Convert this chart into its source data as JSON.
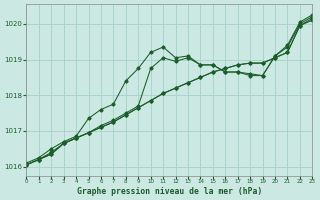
{
  "title": "Graphe pression niveau de la mer (hPa)",
  "background_color": "#cce8e2",
  "grid_color": "#aad4cc",
  "line_color": "#1a5c2a",
  "xlim": [
    0,
    23
  ],
  "ylim": [
    1015.75,
    1020.55
  ],
  "yticks": [
    1016,
    1017,
    1018,
    1019,
    1020
  ],
  "xticks": [
    0,
    1,
    2,
    3,
    4,
    5,
    6,
    7,
    8,
    9,
    10,
    11,
    12,
    13,
    14,
    15,
    16,
    17,
    18,
    19,
    20,
    21,
    22,
    23
  ],
  "series": [
    [
      1016.05,
      1016.2,
      1016.35,
      1016.65,
      1016.8,
      1016.95,
      1017.1,
      1017.25,
      1017.45,
      1017.65,
      1017.85,
      1018.05,
      1018.2,
      1018.35,
      1018.5,
      1018.65,
      1018.75,
      1018.85,
      1018.9,
      1018.9,
      1019.05,
      1019.2,
      1019.95,
      1020.1
    ],
    [
      1016.05,
      1016.2,
      1016.35,
      1016.65,
      1016.8,
      1016.95,
      1017.1,
      1017.25,
      1017.45,
      1017.65,
      1017.85,
      1018.05,
      1018.2,
      1018.35,
      1018.5,
      1018.65,
      1018.75,
      1018.85,
      1018.9,
      1018.9,
      1019.05,
      1019.2,
      1019.95,
      1020.15
    ],
    [
      1016.05,
      1016.2,
      1016.4,
      1016.65,
      1016.8,
      1016.95,
      1017.15,
      1017.3,
      1017.5,
      1017.7,
      1018.75,
      1019.05,
      1018.95,
      1019.05,
      1018.85,
      1018.85,
      1018.65,
      1018.65,
      1018.6,
      1018.55,
      1019.1,
      1019.35,
      1020.0,
      1020.2
    ],
    [
      1016.1,
      1016.25,
      1016.5,
      1016.7,
      1016.85,
      1017.35,
      1017.6,
      1017.75,
      1018.4,
      1018.75,
      1019.2,
      1019.35,
      1019.05,
      1019.1,
      1018.85,
      1018.85,
      1018.65,
      1018.65,
      1018.55,
      1018.55,
      1019.1,
      1019.4,
      1020.05,
      1020.25
    ]
  ]
}
